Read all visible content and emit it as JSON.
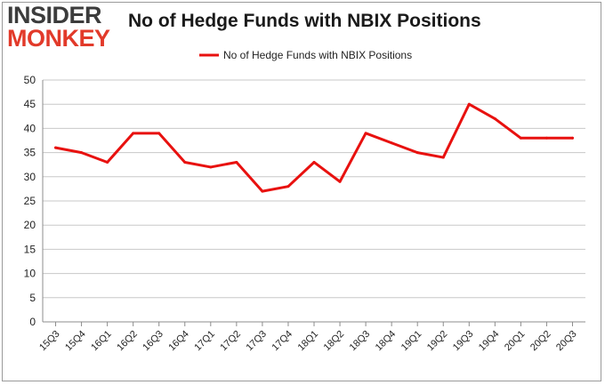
{
  "brand": {
    "line1": "INSIDER",
    "line2": "MONKEY"
  },
  "colors": {
    "series": "#e8110f",
    "grid": "#c8c8c8",
    "axis": "#8c8c8c",
    "brand_dark": "#3c3c3c",
    "brand_red": "#e23a2a"
  },
  "chart_data": {
    "type": "line",
    "title": "No of Hedge Funds with NBIX Positions",
    "xlabel": "",
    "ylabel": "",
    "categories": [
      "15Q3",
      "15Q4",
      "16Q1",
      "16Q2",
      "16Q3",
      "16Q4",
      "17Q1",
      "17Q2",
      "17Q3",
      "17Q4",
      "18Q1",
      "18Q2",
      "18Q3",
      "18Q4",
      "19Q1",
      "19Q2",
      "19Q3",
      "19Q4",
      "20Q1",
      "20Q2",
      "20Q3"
    ],
    "series": [
      {
        "name": "No of Hedge Funds with NBIX Positions",
        "values": [
          36,
          35,
          33,
          39,
          39,
          33,
          32,
          33,
          27,
          28,
          33,
          29,
          39,
          37,
          35,
          34,
          45,
          42,
          38,
          38,
          38
        ]
      }
    ],
    "ylim": [
      0,
      50
    ],
    "yticks": [
      0,
      5,
      10,
      15,
      20,
      25,
      30,
      35,
      40,
      45,
      50
    ],
    "grid": true,
    "legend_position": "top-center"
  }
}
